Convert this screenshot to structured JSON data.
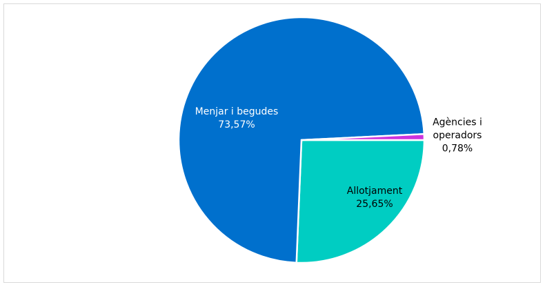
{
  "chart_data": {
    "type": "pie",
    "categories": [
      "Allotjament",
      "Menjar i begudes",
      "Agències i operadors"
    ],
    "values": [
      25.65,
      73.57,
      0.78
    ],
    "value_labels": [
      "25,65%",
      "73,57%",
      "0,78%"
    ],
    "colors": [
      "#00cdc2",
      "#0070cd",
      "#cc33dd"
    ]
  }
}
